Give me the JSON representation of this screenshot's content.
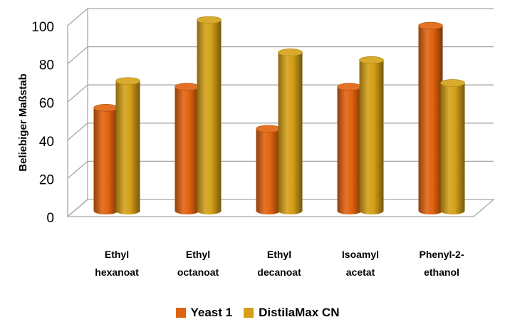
{
  "chart_data": {
    "type": "bar",
    "title": "",
    "xlabel": "",
    "ylabel": "Beliebiger Maßstab",
    "ylim": [
      0,
      100
    ],
    "yticks": [
      0,
      20,
      40,
      60,
      80,
      100
    ],
    "grid": true,
    "three_d": true,
    "bar_shape": "cylinder",
    "legend_position": "bottom",
    "categories": [
      [
        "Ethyl",
        "hexanoat"
      ],
      [
        "Ethyl",
        "octanoat"
      ],
      [
        "Ethyl",
        "decanoat"
      ],
      [
        "Isoamyl",
        "acetat"
      ],
      [
        "Phenyl-2-",
        "ethanol"
      ]
    ],
    "series": [
      {
        "name": "Yeast 1",
        "color": "#E0620E",
        "values": [
          54,
          65,
          43,
          65,
          97
        ]
      },
      {
        "name": "DistilaMax CN",
        "color": "#D4A017",
        "values": [
          68,
          100,
          83,
          79,
          67
        ]
      }
    ]
  }
}
